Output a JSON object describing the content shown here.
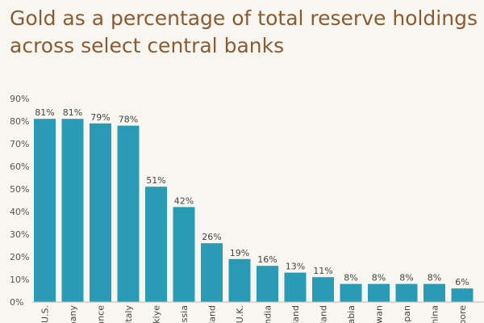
{
  "title_line1": "Gold as a percentage of total reserve holdings",
  "title_line2": "across select central banks",
  "chart_data": {
    "type": "bar",
    "title": "Gold as a percentage of total reserve holdings across select central banks",
    "xlabel": "",
    "ylabel": "",
    "ylim": [
      0,
      90
    ],
    "yticks": [
      0,
      10,
      20,
      30,
      40,
      50,
      60,
      70,
      80,
      90
    ],
    "ytick_labels": [
      "0%",
      "10%",
      "20%",
      "30%",
      "40%",
      "50%",
      "60%",
      "70%",
      "80%",
      "90%"
    ],
    "categories": [
      "U.S.",
      "Germany",
      "France",
      "Italy",
      "Türkiye",
      "Russia",
      "Poland",
      "U.K.",
      "India",
      "Netherlands",
      "Switzerland",
      "Saudi Arabia",
      "Taiwan",
      "Japan",
      "China",
      "Singapore"
    ],
    "category_labels_visible": [
      "U.S.",
      "many",
      "ance",
      "Italy",
      "rkiye",
      "ussia",
      "land",
      "U.K.",
      "ndia",
      "land",
      "land",
      "abia",
      "iwan",
      "apan",
      "hina",
      "pore"
    ],
    "values": [
      81,
      81,
      79,
      78,
      51,
      42,
      26,
      19,
      16,
      13,
      11,
      8,
      8,
      8,
      8,
      6
    ],
    "data_labels": [
      "81%",
      "81%",
      "79%",
      "78%",
      "51%",
      "42%",
      "26%",
      "19%",
      "16%",
      "13%",
      "11%",
      "8%",
      "8%",
      "8%",
      "8%",
      "6%"
    ],
    "bar_color": "#2a9bb5"
  }
}
